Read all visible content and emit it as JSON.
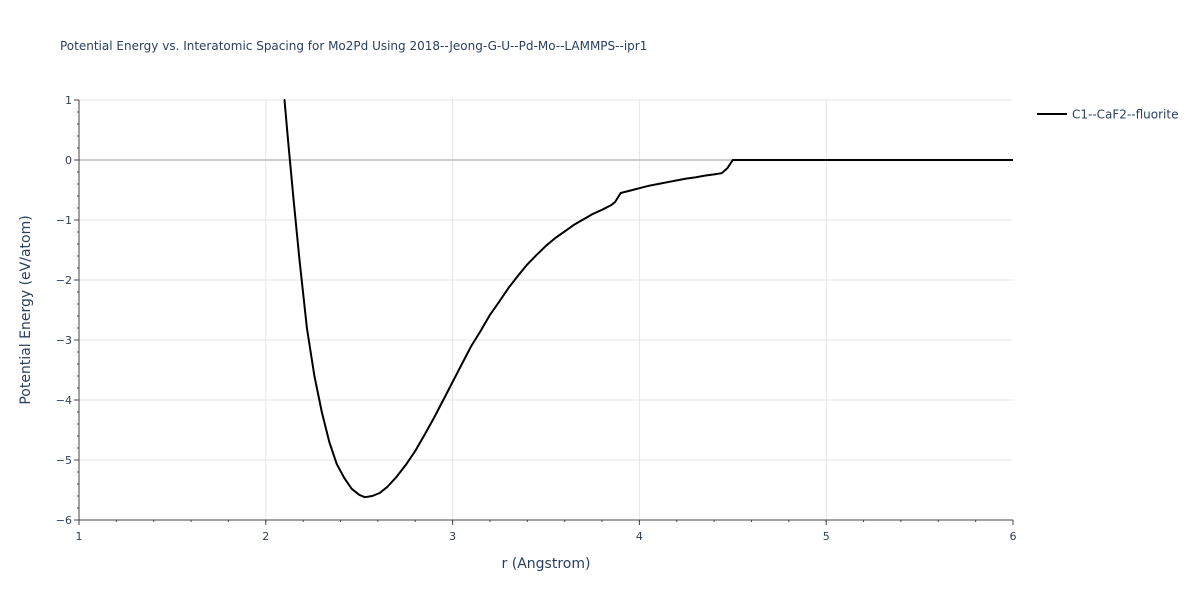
{
  "chart_data": {
    "type": "line",
    "title": "Potential Energy vs. Interatomic Spacing for Mo2Pd Using 2018--Jeong-G-U--Pd-Mo--LAMMPS--ipr1",
    "xlabel": "r (Angstrom)",
    "ylabel": "Potential Energy (eV/atom)",
    "xlim": [
      1,
      6
    ],
    "ylim": [
      -6,
      1
    ],
    "xticks": [
      1,
      2,
      3,
      4,
      5,
      6
    ],
    "yticks": [
      1,
      0,
      -1,
      -2,
      -3,
      -4,
      -5,
      -6
    ],
    "xtick_labels": [
      "1",
      "2",
      "3",
      "4",
      "5",
      "6"
    ],
    "ytick_labels": [
      "1",
      "0",
      "−1",
      "−2",
      "−3",
      "−4",
      "−5",
      "−6"
    ],
    "grid": true,
    "legend_position": "top-right",
    "colors": {
      "series": "#000000",
      "grid": "#e5e5e5",
      "zeroline": "#cccccc",
      "text": "#2a3f5f"
    },
    "series": [
      {
        "name": "C1--CaF2--fluorite",
        "x": [
          2.1,
          2.12,
          2.15,
          2.18,
          2.22,
          2.26,
          2.3,
          2.34,
          2.38,
          2.42,
          2.46,
          2.5,
          2.53,
          2.57,
          2.61,
          2.65,
          2.7,
          2.75,
          2.8,
          2.85,
          2.9,
          2.95,
          3.0,
          3.05,
          3.1,
          3.15,
          3.2,
          3.25,
          3.3,
          3.35,
          3.4,
          3.45,
          3.5,
          3.55,
          3.6,
          3.65,
          3.7,
          3.75,
          3.8,
          3.85,
          3.87,
          3.9,
          3.95,
          4.0,
          4.05,
          4.1,
          4.15,
          4.2,
          4.25,
          4.3,
          4.35,
          4.4,
          4.44,
          4.47,
          4.5,
          4.6,
          4.8,
          5.0,
          5.5,
          6.0
        ],
        "y": [
          1.0,
          0.3,
          -0.7,
          -1.65,
          -2.8,
          -3.6,
          -4.2,
          -4.7,
          -5.07,
          -5.3,
          -5.48,
          -5.58,
          -5.62,
          -5.6,
          -5.55,
          -5.45,
          -5.28,
          -5.08,
          -4.85,
          -4.58,
          -4.3,
          -4.0,
          -3.7,
          -3.4,
          -3.1,
          -2.85,
          -2.58,
          -2.36,
          -2.13,
          -1.93,
          -1.74,
          -1.58,
          -1.43,
          -1.3,
          -1.19,
          -1.08,
          -0.99,
          -0.9,
          -0.83,
          -0.75,
          -0.7,
          -0.55,
          -0.51,
          -0.47,
          -0.43,
          -0.4,
          -0.37,
          -0.34,
          -0.31,
          -0.29,
          -0.26,
          -0.24,
          -0.22,
          -0.14,
          0.0,
          0.0,
          0.0,
          0.0,
          0.0,
          0.0
        ]
      }
    ]
  }
}
